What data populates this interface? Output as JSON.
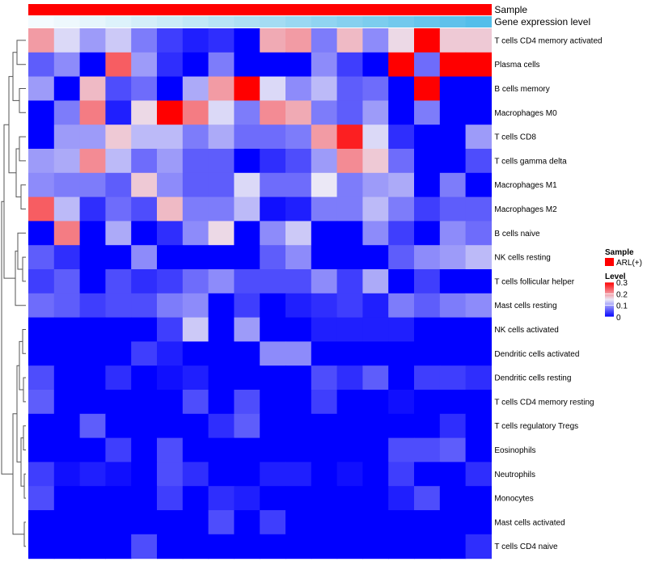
{
  "chart_data": {
    "type": "heatmap",
    "title": "",
    "annotation_rows": [
      {
        "name": "Sample",
        "label": "Sample"
      },
      {
        "name": "Gene expression level",
        "label": "Gene expression level"
      }
    ],
    "gene_expression_colors": [
      "#f4fbff",
      "#eef8fd",
      "#e6f5fc",
      "#ddf2fb",
      "#d4eef9",
      "#cbebf8",
      "#c1e7f7",
      "#b7e3f6",
      "#aee0f4",
      "#a4dcf3",
      "#9ad8f2",
      "#90d4f1",
      "#86d0ef",
      "#7ccdee",
      "#72c9ed",
      "#68c5ec",
      "#5ec1eb",
      "#54beea"
    ],
    "row_labels": [
      "T cells CD4 memory activated",
      "Plasma cells",
      "B cells memory",
      "Macrophages M0",
      "T cells CD8",
      "T cells gamma delta",
      "Macrophages M1",
      "Macrophages M2",
      "B cells naive",
      "NK cells resting",
      "T cells follicular helper",
      "Mast cells resting",
      "NK cells activated",
      "Dendritic cells activated",
      "Dendritic cells resting",
      "T cells CD4 memory resting",
      "T cells regulatory  Tregs",
      "Eosinophils",
      "Neutrophils",
      "Monocytes",
      "Mast cells activated",
      "T cells CD4 naive"
    ],
    "n_samples": 18,
    "values": [
      [
        0.2,
        0.14,
        0.1,
        0.13,
        0.08,
        0.04,
        0.02,
        0.03,
        0.0,
        0.19,
        0.2,
        0.08,
        0.18,
        0.09,
        0.16,
        0.3,
        0.17,
        0.17
      ],
      [
        0.06,
        0.09,
        0.0,
        0.24,
        0.1,
        0.03,
        0.0,
        0.08,
        0.0,
        0.0,
        0.0,
        0.09,
        0.04,
        0.0,
        0.3,
        0.07,
        0.3,
        0.3
      ],
      [
        0.1,
        0.0,
        0.18,
        0.05,
        0.07,
        0.0,
        0.11,
        0.2,
        0.3,
        0.14,
        0.09,
        0.12,
        0.06,
        0.07,
        0.0,
        0.3,
        0.0,
        0.0
      ],
      [
        0.0,
        0.08,
        0.22,
        0.02,
        0.16,
        0.3,
        0.22,
        0.14,
        0.08,
        0.21,
        0.19,
        0.08,
        0.06,
        0.1,
        0.0,
        0.08,
        0.0,
        0.0
      ],
      [
        0.0,
        0.1,
        0.1,
        0.17,
        0.12,
        0.12,
        0.08,
        0.11,
        0.07,
        0.07,
        0.08,
        0.2,
        0.28,
        0.14,
        0.03,
        0.0,
        0.0,
        0.1
      ],
      [
        0.1,
        0.11,
        0.21,
        0.12,
        0.07,
        0.1,
        0.06,
        0.06,
        0.0,
        0.03,
        0.05,
        0.1,
        0.21,
        0.17,
        0.07,
        0.0,
        0.0,
        0.05
      ],
      [
        0.09,
        0.08,
        0.08,
        0.06,
        0.17,
        0.09,
        0.06,
        0.06,
        0.14,
        0.07,
        0.07,
        0.15,
        0.08,
        0.1,
        0.11,
        0.0,
        0.08,
        0.0
      ],
      [
        0.24,
        0.12,
        0.03,
        0.07,
        0.05,
        0.18,
        0.08,
        0.08,
        0.12,
        0.01,
        0.02,
        0.08,
        0.08,
        0.12,
        0.08,
        0.04,
        0.06,
        0.06
      ],
      [
        0.0,
        0.22,
        0.0,
        0.11,
        0.0,
        0.03,
        0.09,
        0.16,
        0.0,
        0.09,
        0.13,
        0.0,
        0.0,
        0.09,
        0.04,
        0.0,
        0.09,
        0.07
      ],
      [
        0.06,
        0.03,
        0.0,
        0.0,
        0.09,
        0.0,
        0.0,
        0.0,
        0.0,
        0.06,
        0.09,
        0.0,
        0.0,
        0.0,
        0.06,
        0.09,
        0.1,
        0.12
      ],
      [
        0.04,
        0.06,
        0.0,
        0.05,
        0.03,
        0.04,
        0.07,
        0.09,
        0.05,
        0.05,
        0.05,
        0.09,
        0.04,
        0.11,
        0.0,
        0.04,
        0.0,
        0.0
      ],
      [
        0.07,
        0.06,
        0.04,
        0.05,
        0.05,
        0.08,
        0.09,
        0.0,
        0.04,
        0.0,
        0.02,
        0.03,
        0.04,
        0.02,
        0.08,
        0.06,
        0.08,
        0.09
      ],
      [
        0.0,
        0.0,
        0.0,
        0.0,
        0.0,
        0.04,
        0.13,
        0.0,
        0.1,
        0.0,
        0.0,
        0.02,
        0.02,
        0.02,
        0.02,
        0.0,
        0.0,
        0.0
      ],
      [
        0.0,
        0.0,
        0.0,
        0.0,
        0.04,
        0.02,
        0.0,
        0.0,
        0.0,
        0.09,
        0.09,
        0.0,
        0.0,
        0.0,
        0.0,
        0.0,
        0.0,
        0.0
      ],
      [
        0.05,
        0.0,
        0.0,
        0.03,
        0.0,
        0.01,
        0.02,
        0.0,
        0.0,
        0.0,
        0.0,
        0.05,
        0.03,
        0.06,
        0.0,
        0.04,
        0.04,
        0.03
      ],
      [
        0.06,
        0.0,
        0.0,
        0.0,
        0.0,
        0.0,
        0.05,
        0.0,
        0.05,
        0.0,
        0.0,
        0.04,
        0.0,
        0.0,
        0.01,
        0.0,
        0.0,
        0.0
      ],
      [
        0.0,
        0.0,
        0.06,
        0.0,
        0.0,
        0.0,
        0.0,
        0.03,
        0.06,
        0.0,
        0.0,
        0.0,
        0.0,
        0.0,
        0.0,
        0.0,
        0.03,
        0.0
      ],
      [
        0.0,
        0.0,
        0.0,
        0.04,
        0.0,
        0.05,
        0.0,
        0.0,
        0.0,
        0.0,
        0.0,
        0.0,
        0.0,
        0.0,
        0.05,
        0.05,
        0.06,
        0.0
      ],
      [
        0.04,
        0.01,
        0.02,
        0.01,
        0.0,
        0.05,
        0.03,
        0.0,
        0.0,
        0.02,
        0.02,
        0.0,
        0.01,
        0.0,
        0.04,
        0.0,
        0.0,
        0.03
      ],
      [
        0.05,
        0.0,
        0.0,
        0.0,
        0.0,
        0.04,
        0.0,
        0.03,
        0.02,
        0.0,
        0.0,
        0.0,
        0.0,
        0.0,
        0.02,
        0.05,
        0.0,
        0.0
      ],
      [
        0.0,
        0.0,
        0.0,
        0.0,
        0.0,
        0.0,
        0.0,
        0.05,
        0.0,
        0.04,
        0.0,
        0.0,
        0.0,
        0.0,
        0.0,
        0.0,
        0.0,
        0.0
      ],
      [
        0.0,
        0.0,
        0.0,
        0.0,
        0.05,
        0.0,
        0.0,
        0.0,
        0.0,
        0.0,
        0.0,
        0.0,
        0.0,
        0.0,
        0.0,
        0.0,
        0.0,
        0.03
      ]
    ],
    "color_scale": {
      "min": 0,
      "max": 0.3,
      "low": "#0000ff",
      "mid": "#ebe8f6",
      "high": "#ff0000"
    },
    "legend": {
      "sample_title": "Sample",
      "sample_entries": [
        {
          "label": "ARL(+)",
          "color": "#ff0000"
        }
      ],
      "level_title": "Level",
      "level_ticks": [
        {
          "value": 0.3,
          "label": "0.3"
        },
        {
          "value": 0.2,
          "label": "0.2"
        },
        {
          "value": 0.1,
          "label": "0.1"
        },
        {
          "value": 0,
          "label": "0"
        }
      ],
      "position": "right"
    },
    "row_dendrogram": true,
    "row_dendrogram_side": "left"
  }
}
